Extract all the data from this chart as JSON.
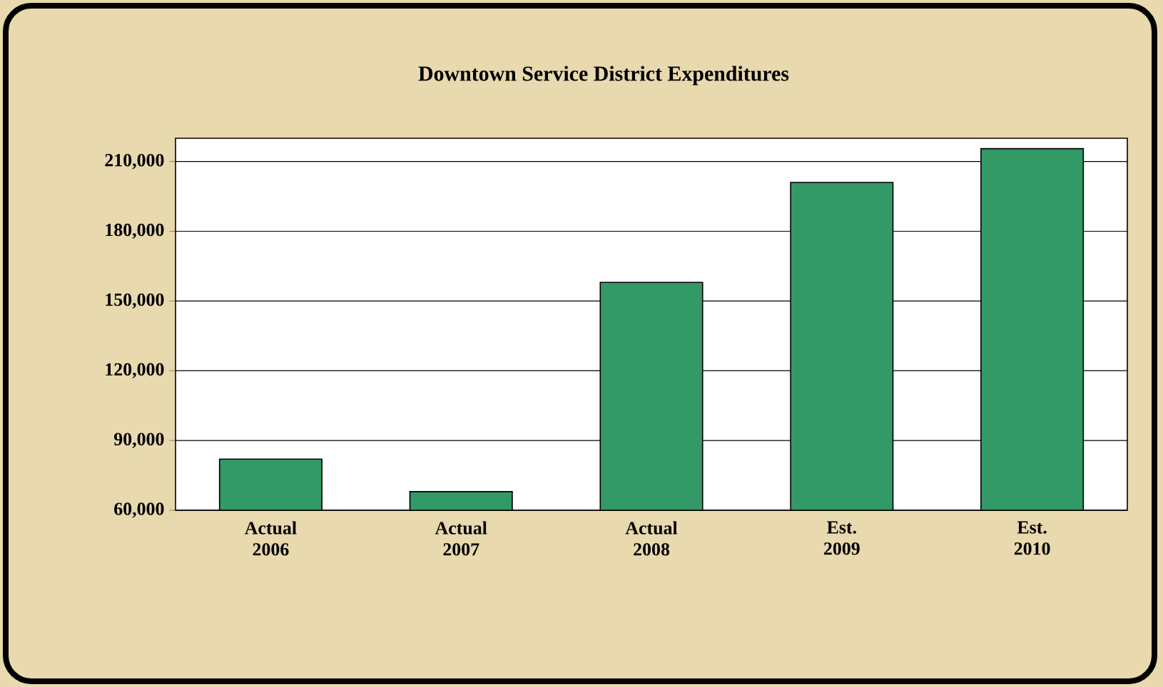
{
  "chart_data": {
    "type": "bar",
    "title": "Downtown Service District Expenditures",
    "categories": [
      "Actual 2006",
      "Actual 2007",
      "Actual 2008",
      "Est. 2009",
      "Est. 2010"
    ],
    "values": [
      82000,
      68000,
      158000,
      201000,
      215500
    ],
    "color": "#339966",
    "ylim": [
      60000,
      220000
    ],
    "yticks": [
      {
        "value": 60000,
        "label": "60,000"
      },
      {
        "value": 90000,
        "label": "90,000"
      },
      {
        "value": 120000,
        "label": "120,000"
      },
      {
        "value": 150000,
        "label": "150,000"
      },
      {
        "value": 180000,
        "label": "180,000"
      },
      {
        "value": 210000,
        "label": "210,000"
      }
    ],
    "grid": "y"
  }
}
